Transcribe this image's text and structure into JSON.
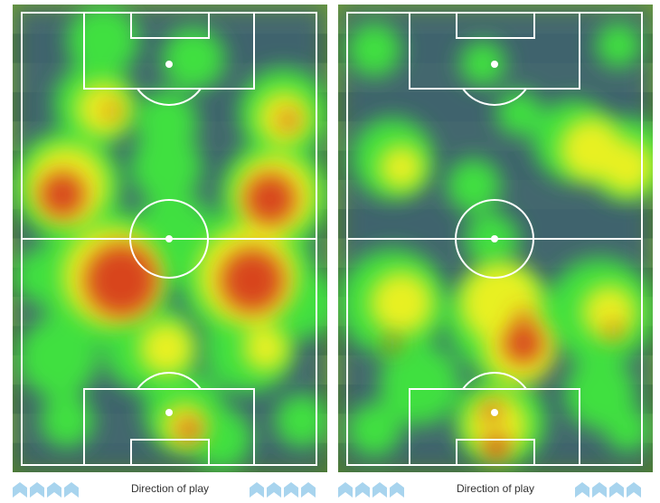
{
  "heatmaps": [
    {
      "footer": {
        "label": "Direction of play"
      }
    },
    {
      "footer": {
        "label": "Direction of play"
      }
    }
  ],
  "colors": {
    "pitch_light": "#6a9a3a",
    "pitch_dark": "#4f7f2e",
    "cold": "#3d5f78",
    "green": "#3fe040",
    "yellow": "#e8f020",
    "red": "#d8441c",
    "arrow": "#a8d4ee"
  }
}
